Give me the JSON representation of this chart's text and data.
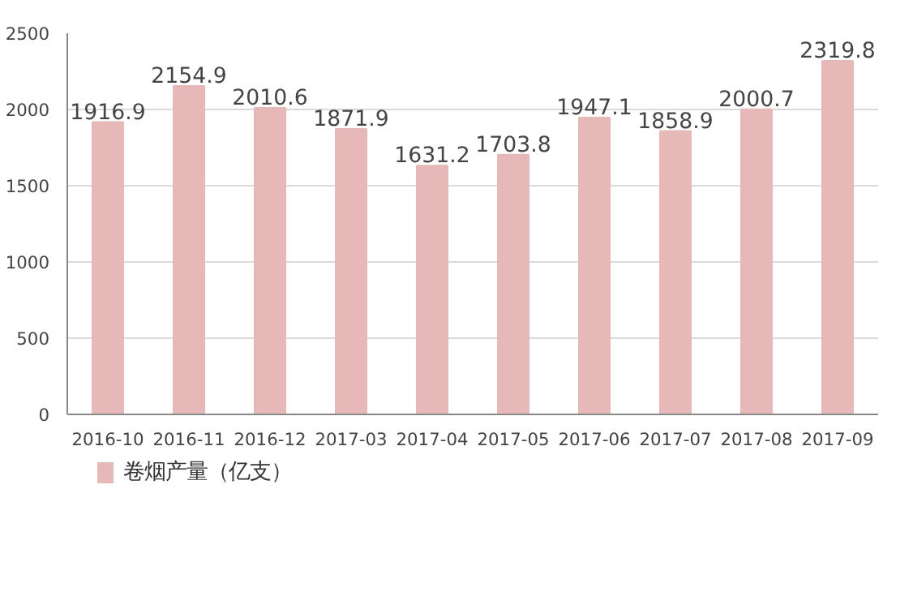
{
  "chart_data": {
    "type": "bar",
    "categories": [
      "2016-10",
      "2016-11",
      "2016-12",
      "2017-03",
      "2017-04",
      "2017-05",
      "2017-06",
      "2017-07",
      "2017-08",
      "2017-09"
    ],
    "series": [
      {
        "name": "卷烟产量（亿支）",
        "color": "#e6b9b8",
        "values": [
          1916.9,
          2154.9,
          2010.6,
          1871.9,
          1631.2,
          1703.8,
          1947.1,
          1858.9,
          2000.7,
          2319.8
        ]
      }
    ],
    "ylim": [
      0,
      2500
    ],
    "yticks": [
      0,
      500,
      1000,
      1500,
      2000,
      2500
    ],
    "grid": "y",
    "data_labels": true,
    "legend": "bottom left"
  }
}
